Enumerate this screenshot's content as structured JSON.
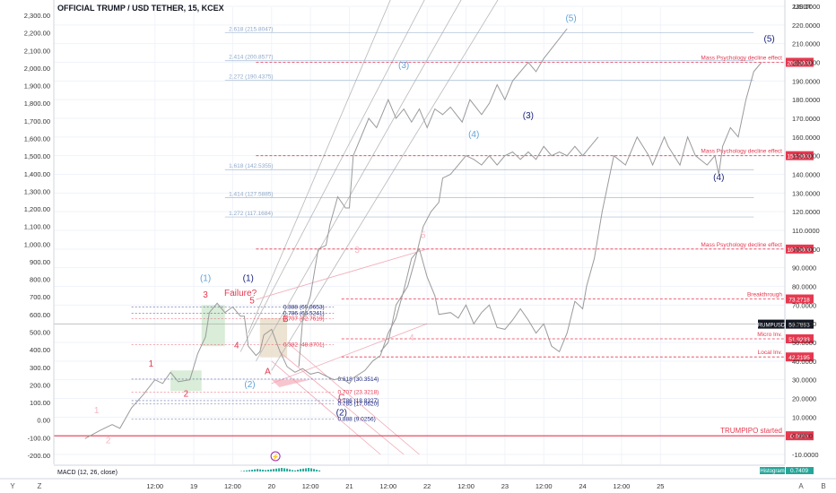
{
  "header": {
    "title": "OFFICIAL TRUMP / USD TETHER, 15, KCEX"
  },
  "currency": "USDT",
  "colors": {
    "bg": "#ffffff",
    "price": "#9a9a9a",
    "red": "#e53950",
    "blue": "#1a237e",
    "lightblue": "#64a4d8",
    "fib": "#8fa9c9",
    "grid": "#f0f3fa",
    "green_box": "#cfe8d0",
    "tan_box": "#e8dcc8",
    "pink": "#f6b6c2"
  },
  "chart_data": {
    "type": "line",
    "symbol": "TRUMPUSDT",
    "left_axis": {
      "ticks": [
        "2,300.00",
        "2,200.00",
        "2,100.00",
        "2,000.00",
        "1,900.00",
        "1,800.00",
        "1,700.00",
        "1,600.00",
        "1,500.00",
        "1,400.00",
        "1,300.00",
        "1,200.00",
        "1,100.00",
        "1,000.00",
        "900.00",
        "800.00",
        "700.00",
        "600.00",
        "500.00",
        "400.00",
        "300.00",
        "200.00",
        "100.00",
        "0.00",
        "-100.00",
        "-200.00"
      ]
    },
    "right_axis": {
      "ylim": [
        -10,
        230
      ],
      "ticks": [
        "230.0000",
        "220.0000",
        "210.0000",
        "200.0000",
        "190.0000",
        "180.0000",
        "170.0000",
        "160.0000",
        "150.0000",
        "140.0000",
        "130.0000",
        "120.0000",
        "110.0000",
        "100.0000",
        "90.0000",
        "80.0000",
        "70.0000",
        "60.0000",
        "50.0000",
        "40.0000",
        "30.0000",
        "20.0000",
        "10.0000",
        "0.0000",
        "-10.0000"
      ],
      "tick_values": [
        230,
        220,
        210,
        200,
        190,
        180,
        170,
        160,
        150,
        140,
        130,
        120,
        110,
        100,
        90,
        80,
        70,
        60,
        50,
        40,
        30,
        20,
        10,
        0,
        -10
      ]
    },
    "x_axis": {
      "xlim": [
        17.2,
        26.6
      ],
      "labels": [
        {
          "x": 18.5,
          "text": "12:00"
        },
        {
          "x": 19.0,
          "text": "19"
        },
        {
          "x": 19.5,
          "text": "12:00"
        },
        {
          "x": 20.0,
          "text": "20"
        },
        {
          "x": 20.5,
          "text": "12:00"
        },
        {
          "x": 21.0,
          "text": "21"
        },
        {
          "x": 21.5,
          "text": "12:00"
        },
        {
          "x": 22.0,
          "text": "22"
        },
        {
          "x": 22.5,
          "text": "12:00"
        },
        {
          "x": 23.0,
          "text": "23"
        },
        {
          "x": 23.5,
          "text": "12:00"
        },
        {
          "x": 24.0,
          "text": "24"
        },
        {
          "x": 24.5,
          "text": "12:00"
        },
        {
          "x": 25.0,
          "text": "25"
        }
      ]
    },
    "series": [
      {
        "points": [
          [
            17.6,
            -1.5
          ],
          [
            17.8,
            3
          ],
          [
            17.95,
            6
          ],
          [
            18.05,
            4
          ],
          [
            18.2,
            15
          ],
          [
            18.35,
            22
          ],
          [
            18.5,
            30
          ],
          [
            18.6,
            28
          ],
          [
            18.7,
            34
          ],
          [
            18.8,
            29
          ],
          [
            18.95,
            30
          ],
          [
            19.05,
            44
          ],
          [
            19.15,
            53
          ],
          [
            19.2,
            66
          ],
          [
            19.3,
            71
          ],
          [
            19.4,
            66
          ],
          [
            19.5,
            69
          ],
          [
            19.6,
            64
          ],
          [
            19.65,
            64
          ],
          [
            19.7,
            48
          ],
          [
            19.8,
            43
          ],
          [
            19.85,
            45
          ],
          [
            19.9,
            54
          ],
          [
            20.0,
            57
          ],
          [
            20.1,
            46
          ],
          [
            20.2,
            37
          ],
          [
            20.3,
            34
          ],
          [
            20.4,
            36
          ],
          [
            20.5,
            33
          ],
          [
            20.6,
            34
          ],
          [
            20.7,
            32
          ],
          [
            20.8,
            30
          ],
          [
            20.9,
            31
          ],
          [
            21.0,
            28
          ],
          [
            21.05,
            31
          ],
          [
            21.2,
            35
          ],
          [
            21.3,
            40
          ],
          [
            21.4,
            43
          ],
          [
            21.5,
            55
          ],
          [
            21.6,
            63
          ],
          [
            21.7,
            78
          ],
          [
            21.8,
            95
          ],
          [
            21.9,
            100
          ],
          [
            22.0,
            85
          ],
          [
            22.1,
            75
          ],
          [
            22.15,
            65
          ],
          [
            22.3,
            66
          ],
          [
            22.4,
            63
          ],
          [
            22.5,
            70
          ],
          [
            22.6,
            60
          ],
          [
            22.7,
            66
          ],
          [
            22.8,
            70
          ],
          [
            22.9,
            58
          ],
          [
            23.0,
            57
          ],
          [
            23.1,
            62
          ],
          [
            23.2,
            68
          ],
          [
            23.3,
            62
          ],
          [
            23.4,
            55
          ],
          [
            23.5,
            60
          ],
          [
            23.6,
            48
          ],
          [
            23.7,
            45
          ],
          [
            23.8,
            55
          ],
          [
            23.9,
            72
          ],
          [
            24.0,
            68
          ],
          [
            24.05,
            80
          ],
          [
            24.15,
            95
          ],
          [
            24.25,
            120
          ],
          [
            24.4,
            150
          ],
          [
            24.55,
            145
          ],
          [
            24.7,
            160
          ],
          [
            24.85,
            150
          ],
          [
            24.9,
            145
          ],
          [
            25.05,
            160
          ],
          [
            25.1,
            155
          ],
          [
            25.25,
            145
          ],
          [
            25.35,
            160
          ],
          [
            25.45,
            150
          ],
          [
            25.6,
            145
          ],
          [
            25.7,
            150
          ],
          [
            25.75,
            140
          ],
          [
            25.8,
            155
          ],
          [
            25.9,
            165
          ],
          [
            26.0,
            160
          ],
          [
            26.1,
            180
          ],
          [
            26.2,
            195
          ],
          [
            26.3,
            200
          ]
        ]
      },
      {
        "points": [
          [
            20.35,
            37
          ],
          [
            20.4,
            62
          ],
          [
            20.5,
            75
          ],
          [
            20.6,
            100
          ],
          [
            20.7,
            102
          ],
          [
            20.75,
            113
          ],
          [
            20.85,
            128
          ],
          [
            20.95,
            122
          ],
          [
            21.0,
            122
          ],
          [
            21.05,
            150
          ],
          [
            21.15,
            160
          ],
          [
            21.25,
            170
          ],
          [
            21.35,
            165
          ],
          [
            21.45,
            175
          ],
          [
            21.5,
            180
          ],
          [
            21.6,
            170
          ],
          [
            21.7,
            175
          ],
          [
            21.8,
            168
          ],
          [
            21.9,
            175
          ],
          [
            22.0,
            165
          ],
          [
            22.1,
            175
          ],
          [
            22.2,
            172
          ],
          [
            22.3,
            176
          ],
          [
            22.45,
            168
          ],
          [
            22.55,
            180
          ],
          [
            22.7,
            172
          ],
          [
            22.8,
            178
          ],
          [
            22.9,
            188
          ],
          [
            23.0,
            180
          ],
          [
            23.1,
            190
          ],
          [
            23.2,
            195
          ],
          [
            23.3,
            200
          ],
          [
            23.4,
            195
          ],
          [
            23.5,
            202
          ],
          [
            23.65,
            210
          ],
          [
            23.8,
            218
          ]
        ]
      },
      {
        "points": [
          [
            21.4,
            45
          ],
          [
            21.5,
            50
          ],
          [
            21.6,
            70
          ],
          [
            21.75,
            80
          ],
          [
            21.85,
            95
          ],
          [
            21.95,
            112
          ],
          [
            22.05,
            120
          ],
          [
            22.15,
            125
          ],
          [
            22.2,
            138
          ],
          [
            22.3,
            140
          ],
          [
            22.4,
            145
          ],
          [
            22.5,
            150
          ],
          [
            22.6,
            148
          ],
          [
            22.7,
            145
          ],
          [
            22.8,
            150
          ],
          [
            22.9,
            145
          ],
          [
            23.0,
            150
          ],
          [
            23.1,
            152
          ],
          [
            23.2,
            148
          ],
          [
            23.3,
            152
          ],
          [
            23.4,
            148
          ],
          [
            23.5,
            155
          ],
          [
            23.6,
            150
          ],
          [
            23.7,
            152
          ],
          [
            23.8,
            150
          ],
          [
            23.9,
            155
          ],
          [
            24.0,
            150
          ],
          [
            24.1,
            155
          ],
          [
            24.2,
            160
          ]
        ]
      }
    ],
    "levels_right": [
      {
        "value": 200.0,
        "label": "Mass Psychology decline effect",
        "tag": "200.0000"
      },
      {
        "value": 150.0,
        "label": "Mass Psychology decline effect",
        "tag": "150.0000"
      },
      {
        "value": 100.0,
        "label": "Mass Psychology decline effect",
        "tag": "100.0000"
      },
      {
        "value": 73.2718,
        "label": "Breakthrough",
        "tag": "73.2718"
      },
      {
        "value": 51.9233,
        "label": "Micro Inv.",
        "tag": "51.9233"
      },
      {
        "value": 42.2195,
        "label": "Local Inv.",
        "tag": "42.2195"
      },
      {
        "value": 0.0,
        "label": "TRUMPIPO started",
        "tag": "0.0000"
      }
    ],
    "last_price": {
      "value": 59.7893,
      "label": "TRUMPUSDT",
      "tag": "59.7893"
    },
    "fib_upper": [
      {
        "value": 215.8047,
        "label": "2.618 (215.8047)"
      },
      {
        "value": 200.8577,
        "label": "2.414 (200.8577)"
      },
      {
        "value": 190.4375,
        "label": "2.272 (190.4375)"
      },
      {
        "value": 142.5355,
        "label": "1.618 (142.5355)"
      },
      {
        "value": 127.5885,
        "label": "1.414 (127.5885)"
      },
      {
        "value": 117.1684,
        "label": "1.272 (117.1684)"
      }
    ],
    "fib_lower": [
      {
        "value": 69.0653,
        "label": "0.888 (69.0653)"
      },
      {
        "value": 65.5241,
        "label": "0.786 (65.5241)"
      },
      {
        "value": 62.7619,
        "label": "0.707 (62.7619)"
      },
      {
        "value": 48.8701,
        "label": "0.382 (48.8701)"
      },
      {
        "value": 30.3514,
        "label": "0.618 (30.3514)"
      },
      {
        "value": 23.3218,
        "label": "0.707 (23.3218)"
      },
      {
        "value": 18.8327,
        "label": "0.786 (18.8327)"
      },
      {
        "value": 17.062,
        "label": "0.785 (17.0620)"
      },
      {
        "value": 9.0256,
        "label": "0.888 (9.0256)"
      }
    ],
    "wave_labels": [
      {
        "x": 17.75,
        "y": 12,
        "text": "1",
        "color": "pink"
      },
      {
        "x": 17.9,
        "y": -4,
        "text": "2",
        "color": "pink"
      },
      {
        "x": 18.45,
        "y": 37,
        "text": "1",
        "color": "red"
      },
      {
        "x": 18.9,
        "y": 21,
        "text": "2",
        "color": "red"
      },
      {
        "x": 19.15,
        "y": 74,
        "text": "3",
        "color": "red"
      },
      {
        "x": 19.55,
        "y": 47,
        "text": "4",
        "color": "red"
      },
      {
        "x": 19.75,
        "y": 71,
        "text": "5",
        "color": "red"
      },
      {
        "x": 19.6,
        "y": 75,
        "text": "Failure?",
        "color": "red"
      },
      {
        "x": 19.15,
        "y": 83,
        "text": "(1)",
        "color": "lightblue"
      },
      {
        "x": 19.7,
        "y": 83,
        "text": "(1)",
        "color": "blue"
      },
      {
        "x": 19.72,
        "y": 26,
        "text": "(2)",
        "color": "lightblue"
      },
      {
        "x": 20.18,
        "y": 61,
        "text": "B",
        "color": "red"
      },
      {
        "x": 19.95,
        "y": 33,
        "text": "A",
        "color": "red"
      },
      {
        "x": 20.9,
        "y": 19,
        "text": "C",
        "color": "red"
      },
      {
        "x": 20.9,
        "y": 11,
        "text": "(2)",
        "color": "blue"
      },
      {
        "x": 21.1,
        "y": 98,
        "text": "3",
        "color": "pink"
      },
      {
        "x": 21.8,
        "y": 51,
        "text": "4",
        "color": "pink"
      },
      {
        "x": 21.95,
        "y": 106,
        "text": "5",
        "color": "pink"
      },
      {
        "x": 21.7,
        "y": 197,
        "text": "(3)",
        "color": "lightblue"
      },
      {
        "x": 22.6,
        "y": 160,
        "text": "(4)",
        "color": "lightblue"
      },
      {
        "x": 23.85,
        "y": 222,
        "text": "(5)",
        "color": "lightblue"
      },
      {
        "x": 23.3,
        "y": 170,
        "text": "(3)",
        "color": "blue"
      },
      {
        "x": 25.75,
        "y": 137,
        "text": "(4)",
        "color": "blue"
      },
      {
        "x": 26.4,
        "y": 211,
        "text": "(5)",
        "color": "blue"
      }
    ]
  },
  "indicator": {
    "label": "MACD (12, 26, close)",
    "histogram_label": "Histogram",
    "histogram_value": "0.7409",
    "histogram_values": [
      0.1,
      0.2,
      0.3,
      0.4,
      0.5,
      0.6,
      0.7,
      0.6,
      0.5,
      0.4,
      0.5,
      0.6,
      0.7,
      0.8,
      0.9,
      1.0,
      0.9,
      0.8,
      0.6,
      0.4,
      0.3,
      0.5,
      0.7,
      0.8,
      0.9,
      1.0,
      0.9,
      0.7,
      0.5,
      0.3
    ]
  },
  "bottom_bar": {
    "left_items": [
      "Y",
      "Z"
    ],
    "right_items": [
      "A",
      "B"
    ]
  }
}
